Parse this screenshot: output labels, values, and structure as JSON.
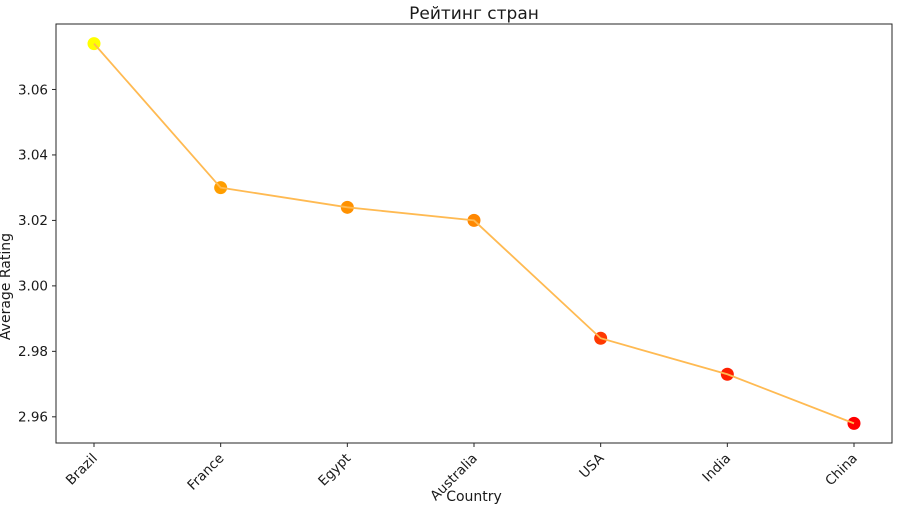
{
  "chart_data": {
    "type": "line",
    "title": "Рейтинг стран",
    "xlabel": "Country",
    "ylabel": "Average Rating",
    "categories": [
      "Brazil",
      "France",
      "Egypt",
      "Australia",
      "USA",
      "India",
      "China"
    ],
    "values": [
      3.074,
      3.03,
      3.024,
      3.02,
      2.984,
      2.973,
      2.958
    ],
    "point_colors": [
      "#ffff00",
      "#ff9e00",
      "#ff9100",
      "#ff8700",
      "#ff3900",
      "#ff2000",
      "#ff0000"
    ],
    "line_color": "#ffba52",
    "marker_diameter_px": 13,
    "ylim": [
      2.952,
      3.08
    ],
    "yticks": [
      3.06,
      3.04,
      3.02,
      3.0,
      2.98,
      2.96
    ],
    "ytick_labels": [
      "3.06",
      "3.04",
      "3.02",
      "3.00",
      "2.98",
      "2.96"
    ],
    "xtick_rotation_deg": 45,
    "grid": false,
    "legend": "none",
    "axis_color": "#262626",
    "text_color": "#1a1a1a",
    "background": "#ffffff"
  }
}
